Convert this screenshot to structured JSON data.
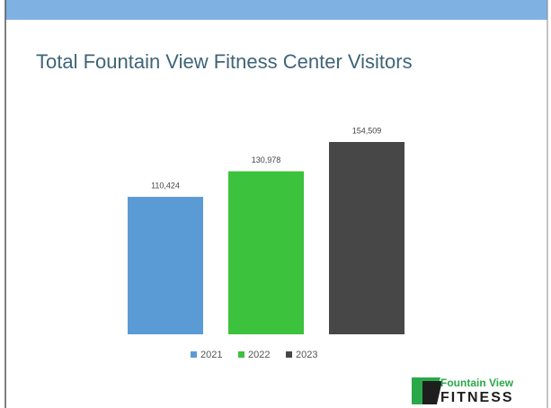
{
  "chart_data": {
    "type": "bar",
    "title": "Total Fountain View Fitness Center Visitors",
    "categories": [
      null
    ],
    "series": [
      {
        "name": "2021",
        "color": "#5b9bd5",
        "values": [
          110424
        ],
        "value_labels": [
          "110,424"
        ]
      },
      {
        "name": "2022",
        "color": "#3cc23c",
        "values": [
          130978
        ],
        "value_labels": [
          "130,978"
        ]
      },
      {
        "name": "2023",
        "color": "#474747",
        "values": [
          154509
        ],
        "value_labels": [
          "154,509"
        ]
      }
    ],
    "legend": "bottom"
  },
  "logo": {
    "line1": "Fountain View",
    "line2": "FITNESS"
  }
}
